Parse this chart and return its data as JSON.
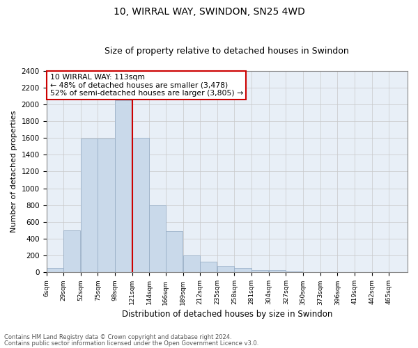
{
  "title": "10, WIRRAL WAY, SWINDON, SN25 4WD",
  "subtitle": "Size of property relative to detached houses in Swindon",
  "xlabel": "Distribution of detached houses by size in Swindon",
  "ylabel": "Number of detached properties",
  "footnote1": "Contains HM Land Registry data © Crown copyright and database right 2024.",
  "footnote2": "Contains public sector information licensed under the Open Government Licence v3.0.",
  "bar_color": "#c9d9ea",
  "bar_edgecolor": "#9ab0c8",
  "annotation_box_text": "10 WIRRAL WAY: 113sqm\n← 48% of detached houses are smaller (3,478)\n52% of semi-detached houses are larger (3,805) →",
  "vline_color": "#cc0000",
  "categories": [
    "6sqm",
    "29sqm",
    "52sqm",
    "75sqm",
    "98sqm",
    "121sqm",
    "144sqm",
    "166sqm",
    "189sqm",
    "212sqm",
    "235sqm",
    "258sqm",
    "281sqm",
    "304sqm",
    "327sqm",
    "350sqm",
    "373sqm",
    "396sqm",
    "419sqm",
    "442sqm",
    "465sqm"
  ],
  "bin_lefts": [
    6,
    29,
    52,
    75,
    98,
    121,
    144,
    166,
    189,
    212,
    235,
    258,
    281,
    304,
    327,
    350,
    373,
    396,
    419,
    442,
    465
  ],
  "bin_width": 23,
  "values": [
    50,
    500,
    1590,
    1590,
    2050,
    1600,
    800,
    490,
    200,
    125,
    80,
    55,
    30,
    25,
    15,
    0,
    0,
    0,
    0,
    0,
    0
  ],
  "vline_x": 121,
  "ylim": [
    0,
    2400
  ],
  "yticks": [
    0,
    200,
    400,
    600,
    800,
    1000,
    1200,
    1400,
    1600,
    1800,
    2000,
    2200,
    2400
  ],
  "background_color": "#ffffff",
  "plot_bg_color": "#e8eff7",
  "grid_color": "#c8c8c8",
  "title_fontsize": 10,
  "subtitle_fontsize": 9
}
